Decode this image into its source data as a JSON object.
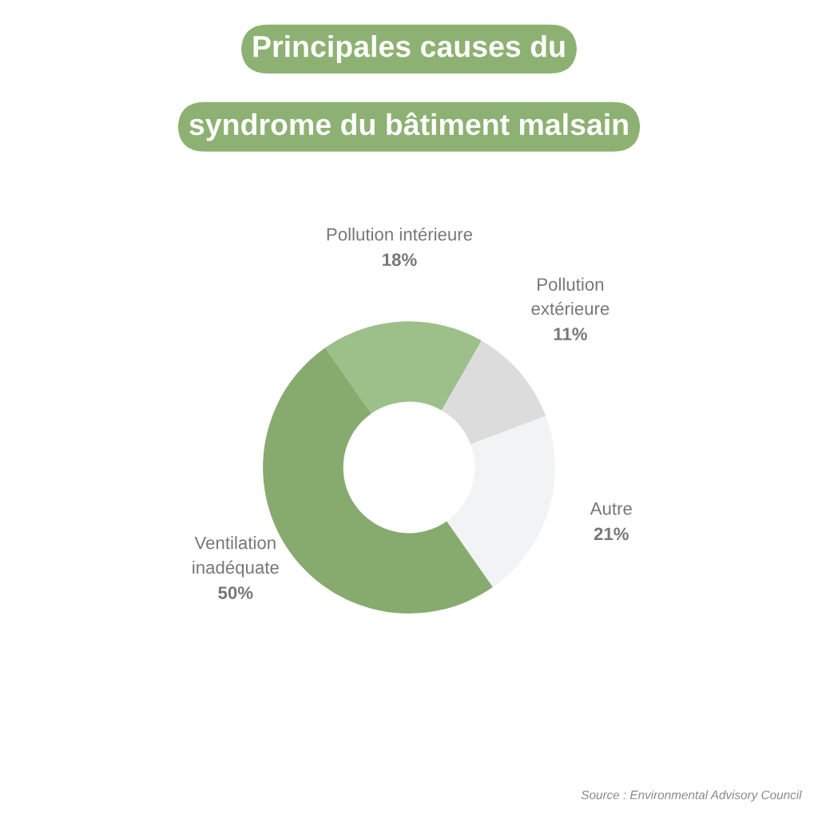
{
  "chart_data": {
    "type": "donut",
    "title": "Principales causes du\nsyndrome du bâtiment malsain",
    "categories": [
      "Pollution intérieure",
      "Pollution\nextérieure",
      "Autre",
      "Ventilation\ninadéquate"
    ],
    "values": [
      18,
      11,
      21,
      50
    ],
    "colors": [
      "#9dc08b",
      "#dcdcdc",
      "#f2f3f5",
      "#87ab6f"
    ],
    "value_labels": [
      "18%",
      "11%",
      "21%",
      "50%"
    ],
    "legend": false,
    "annotations": [
      "Source : Environmental Advisory Council"
    ]
  }
}
